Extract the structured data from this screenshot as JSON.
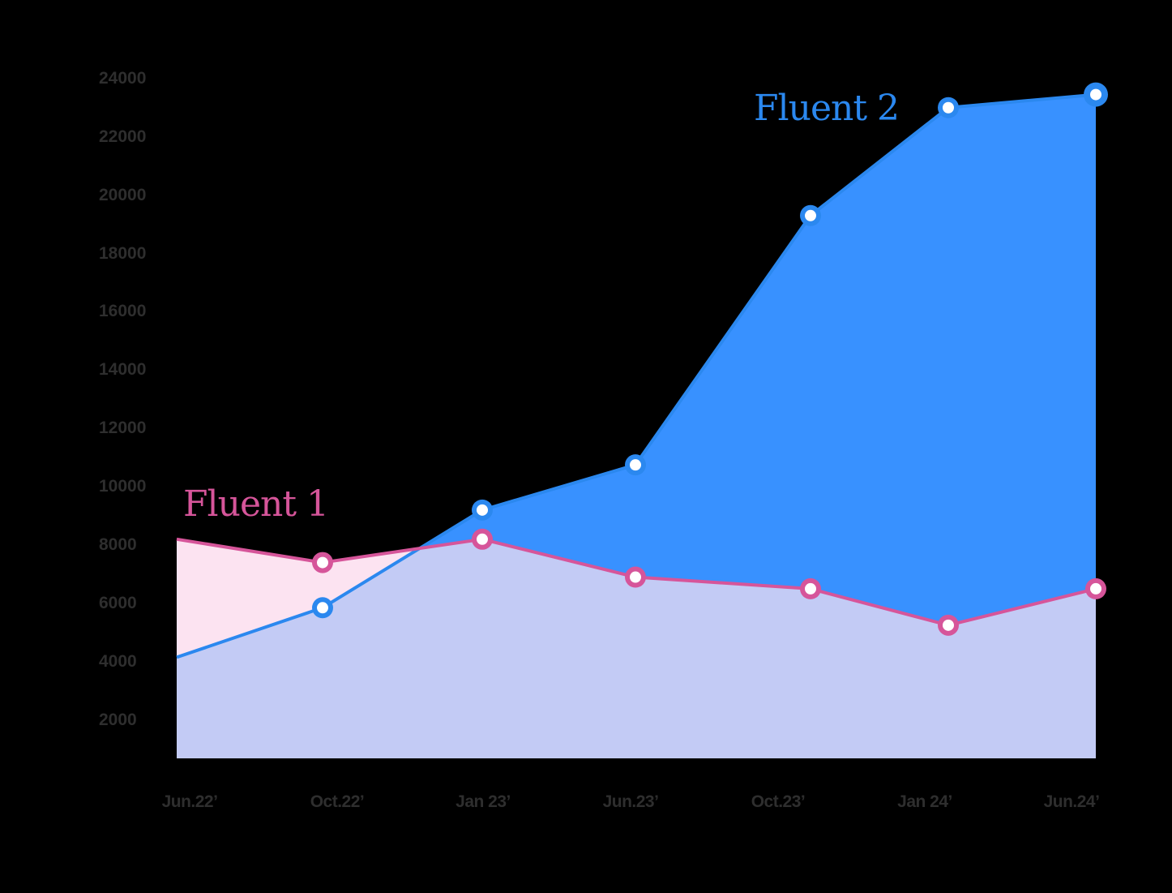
{
  "chart_data": {
    "type": "area",
    "title": "",
    "xlabel": "",
    "ylabel": "",
    "categories": [
      "Jun.22’",
      "Oct.22’",
      "Jan 23’",
      "Jun.23’",
      "Oct.23’",
      "Jan 24’",
      "Jun.24’"
    ],
    "yticks": [
      2000,
      4000,
      6000,
      8000,
      10000,
      12000,
      14000,
      16000,
      18000,
      20000,
      22000,
      24000
    ],
    "ylim": [
      670,
      24000
    ],
    "grid": false,
    "legend_position": "inline-labels",
    "series": [
      {
        "name": "Fluent 1",
        "color": "#d6559a",
        "fill": "#fce3f1",
        "values": [
          8200,
          7400,
          8200,
          6900,
          6500,
          5250,
          6500
        ]
      },
      {
        "name": "Fluent 2",
        "color": "#2b88ef",
        "fill": "#3891ff",
        "values": [
          4150,
          5850,
          9200,
          10750,
          19300,
          23000,
          23450
        ]
      }
    ],
    "overlap_fill": "#c3cbf5"
  },
  "labels": {
    "fluent1": "Fluent 1",
    "fluent2": "Fluent 2"
  },
  "colors": {
    "background": "#000000",
    "tick_text": "#2e2e2e",
    "fluent1": "#d6559a",
    "fluent2": "#2b88ef"
  }
}
